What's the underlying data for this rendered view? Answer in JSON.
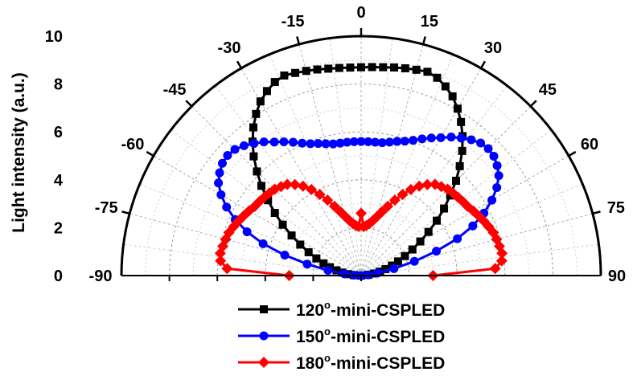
{
  "chart_data": {
    "type": "polar-line",
    "ylabel": "Light intensity (a.u.)",
    "angle_unit": "degrees",
    "angle_range": [
      -90,
      90
    ],
    "radial_range": [
      0,
      10
    ],
    "angle_ticks": [
      -90,
      -75,
      -60,
      -45,
      -30,
      -15,
      0,
      15,
      30,
      45,
      60,
      75,
      90
    ],
    "radial_ticks": [
      0,
      2,
      4,
      6,
      8,
      10
    ],
    "grid": true,
    "legend_position": "bottom",
    "series": [
      {
        "name_main": "120",
        "name_suffix": "-mini-CSPLED",
        "superscript": "o",
        "color": "#000000",
        "marker": "square",
        "angles": [
          -90,
          -87,
          -84,
          -81,
          -78,
          -75,
          -72,
          -69,
          -66,
          -63,
          -60,
          -57,
          -54,
          -51,
          -48,
          -45,
          -42,
          -39,
          -36,
          -33,
          -30,
          -27,
          -24,
          -21,
          -18,
          -15,
          -12,
          -9,
          -6,
          -3,
          0,
          3,
          6,
          9,
          12,
          15,
          18,
          21,
          24,
          27,
          30,
          33,
          36,
          39,
          42,
          45,
          48,
          51,
          54,
          57,
          60,
          63,
          66,
          69,
          72,
          75,
          78,
          81,
          84,
          87,
          90
        ],
        "values": [
          0,
          0.3,
          0.55,
          0.8,
          1.05,
          1.35,
          1.65,
          2.0,
          2.4,
          2.85,
          3.35,
          3.9,
          4.45,
          5.0,
          5.6,
          6.15,
          6.7,
          7.2,
          7.65,
          8.05,
          8.4,
          8.65,
          8.85,
          8.95,
          8.9,
          8.85,
          8.8,
          8.75,
          8.72,
          8.7,
          8.7,
          8.72,
          8.75,
          8.8,
          8.85,
          8.9,
          8.95,
          8.85,
          8.65,
          8.4,
          8.05,
          7.65,
          7.2,
          6.7,
          6.15,
          5.6,
          5.0,
          4.45,
          3.9,
          3.35,
          2.85,
          2.4,
          2.0,
          1.65,
          1.35,
          1.05,
          0.8,
          0.55,
          0.3,
          0,
          0
        ]
      },
      {
        "name_main": "150",
        "name_suffix": "-mini-CSPLED",
        "superscript": "o",
        "color": "#0000ff",
        "marker": "circle",
        "angles": [
          -90,
          -87,
          -84,
          -81,
          -78,
          -75,
          -72,
          -69,
          -66,
          -63,
          -60,
          -57,
          -54,
          -51,
          -48,
          -45,
          -42,
          -39,
          -36,
          -33,
          -30,
          -27,
          -24,
          -21,
          -18,
          -15,
          -12,
          -9,
          -6,
          -3,
          0,
          3,
          6,
          9,
          12,
          15,
          18,
          21,
          24,
          27,
          30,
          33,
          36,
          39,
          42,
          45,
          48,
          51,
          54,
          57,
          60,
          63,
          66,
          69,
          72,
          75,
          78,
          81,
          84,
          87,
          90
        ],
        "values": [
          0,
          0.3,
          0.7,
          1.4,
          2.3,
          3.3,
          4.3,
          5.1,
          5.75,
          6.3,
          6.75,
          7.1,
          7.3,
          7.45,
          7.5,
          7.45,
          7.3,
          7.1,
          6.9,
          6.65,
          6.45,
          6.25,
          6.05,
          5.9,
          5.8,
          5.7,
          5.62,
          5.6,
          5.6,
          5.6,
          5.6,
          5.6,
          5.6,
          5.62,
          5.7,
          5.8,
          5.9,
          6.05,
          6.25,
          6.45,
          6.65,
          6.9,
          7.1,
          7.3,
          7.45,
          7.5,
          7.45,
          7.3,
          7.1,
          6.75,
          6.3,
          5.75,
          5.1,
          4.3,
          3.3,
          2.3,
          1.4,
          0.7,
          0.3,
          0,
          0
        ]
      },
      {
        "name_main": "180",
        "name_suffix": "-mini-CSPLED",
        "superscript": "o",
        "color": "#ff0000",
        "marker": "diamond",
        "angles": [
          -90,
          -87,
          -84,
          -81,
          -78,
          -75,
          -72,
          -69,
          -66,
          -63,
          -60,
          -57,
          -54,
          -51,
          -48,
          -45,
          -42,
          -39,
          -36,
          -33,
          -30,
          -27,
          -24,
          -21,
          -18,
          -15,
          -12,
          -9,
          -6,
          -3,
          0,
          3,
          6,
          9,
          12,
          15,
          18,
          21,
          24,
          27,
          30,
          33,
          36,
          39,
          42,
          45,
          48,
          51,
          54,
          57,
          60,
          63,
          66,
          69,
          72,
          75,
          78,
          81,
          84,
          87,
          90
        ],
        "values": [
          3.0,
          5.6,
          5.9,
          5.95,
          5.9,
          5.85,
          5.8,
          5.7,
          5.6,
          5.5,
          5.4,
          5.3,
          5.25,
          5.2,
          5.15,
          5.1,
          5.0,
          4.9,
          4.7,
          4.45,
          4.15,
          3.8,
          3.45,
          3.1,
          2.8,
          2.55,
          2.35,
          2.2,
          2.1,
          2.05,
          2.6,
          2.05,
          2.1,
          2.2,
          2.35,
          2.55,
          2.8,
          3.1,
          3.45,
          3.8,
          4.15,
          4.45,
          4.7,
          4.9,
          5.0,
          5.1,
          5.15,
          5.2,
          5.25,
          5.3,
          5.4,
          5.5,
          5.6,
          5.7,
          5.8,
          5.85,
          5.9,
          5.95,
          5.9,
          5.6,
          3.0
        ]
      }
    ]
  }
}
